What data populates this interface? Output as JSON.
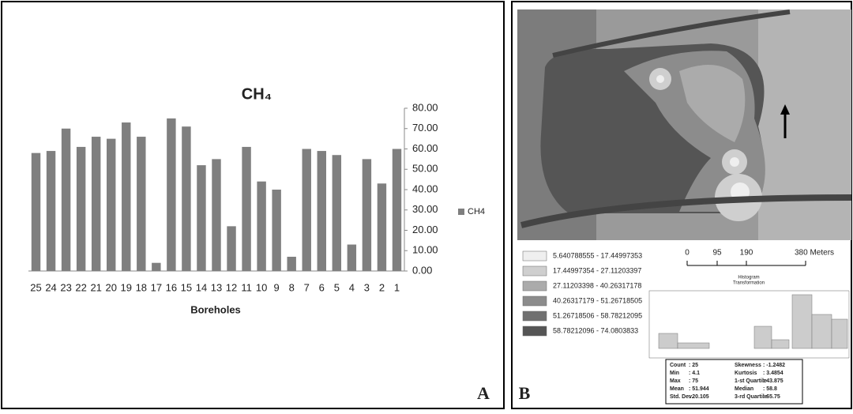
{
  "chart_data": {
    "type": "bar",
    "title": "CH₄",
    "x_label": "Boreholes",
    "categories": [
      "25",
      "24",
      "23",
      "22",
      "21",
      "20",
      "19",
      "18",
      "17",
      "16",
      "15",
      "14",
      "13",
      "12",
      "11",
      "10",
      "9",
      "8",
      "7",
      "6",
      "5",
      "4",
      "3",
      "2",
      "1"
    ],
    "series": [
      {
        "name": "CH4",
        "color": "#7f7f7f",
        "values": [
          58,
          59,
          70,
          61,
          66,
          65,
          73,
          66,
          4,
          75,
          71,
          52,
          55,
          22,
          61,
          44,
          40,
          7,
          60,
          59,
          57,
          13,
          55,
          43,
          60
        ]
      }
    ],
    "ylim": [
      0,
      80
    ],
    "yticks": [
      {
        "value": 0,
        "label": "0.00"
      },
      {
        "value": 10,
        "label": "10.00"
      },
      {
        "value": 20,
        "label": "20.00"
      },
      {
        "value": 30,
        "label": "30.00"
      },
      {
        "value": 40,
        "label": "40.00"
      },
      {
        "value": 50,
        "label": "50.00"
      },
      {
        "value": 60,
        "label": "60.00"
      },
      {
        "value": 70,
        "label": "70.00"
      },
      {
        "value": 80,
        "label": "80.00"
      }
    ],
    "grid": false,
    "legend": "right",
    "y_axis_side": "right"
  },
  "panels": {
    "a": "A",
    "b": "B"
  },
  "map": {
    "legend": [
      {
        "label": "5.640788555 - 17.44997353",
        "color": "#efefef"
      },
      {
        "label": "17.44997354 - 27.11203397",
        "color": "#cfcfcf"
      },
      {
        "label": "27.11203398 - 40.26317178",
        "color": "#ababab"
      },
      {
        "label": "40.26317179 - 51.26718505",
        "color": "#8c8c8c"
      },
      {
        "label": "51.26718506 - 58.78212095",
        "color": "#707070"
      },
      {
        "label": "58.78212096 - 74.0803833",
        "color": "#555555"
      }
    ],
    "scale": [
      "0",
      "95",
      "190",
      "380 Meters"
    ],
    "histogram_title": "Histogram",
    "histogram_subtitle": "Transformation",
    "stats": [
      [
        "Count",
        ": 25",
        "Skewness",
        ": -1.2482"
      ],
      [
        "Min",
        ": 4.1",
        "Kurtosis",
        ": 3.4854"
      ],
      [
        "Max",
        ": 75",
        "1-st Quartile",
        ": 43.875"
      ],
      [
        "Mean",
        ": 51.944",
        "Median",
        ": 58.8"
      ],
      [
        "Std. Dev.",
        ": 20.105",
        "3-rd Quartile",
        ": 65.75"
      ]
    ]
  }
}
